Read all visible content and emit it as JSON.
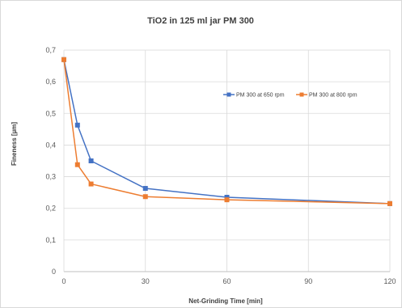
{
  "chart_data": {
    "type": "line",
    "title": "TiO2 in 125 ml jar PM 300",
    "xlabel": "Net-Grinding Time [min]",
    "ylabel": "Fineness [µm]",
    "xlim": [
      0,
      120
    ],
    "ylim": [
      0,
      0.7
    ],
    "x_ticks": [
      0,
      30,
      60,
      90,
      120
    ],
    "y_ticks": [
      0,
      0.1,
      0.2,
      0.3,
      0.4,
      0.5,
      0.6,
      0.7
    ],
    "y_tick_labels": [
      "0",
      "0,1",
      "0,2",
      "0,3",
      "0,4",
      "0,5",
      "0,6",
      "0,7"
    ],
    "x_gridlines": true,
    "y_gridlines": true,
    "legend_position": "right",
    "series": [
      {
        "name": "PM 300 at 650 rpm",
        "color": "#4472C4",
        "marker": "square",
        "x": [
          0,
          5,
          10,
          30,
          60,
          120
        ],
        "y": [
          0.67,
          0.463,
          0.35,
          0.263,
          0.235,
          0.215
        ]
      },
      {
        "name": "PM 300 at 800 rpm",
        "color": "#ED7D31",
        "marker": "square",
        "x": [
          0,
          5,
          10,
          30,
          60,
          120
        ],
        "y": [
          0.67,
          0.338,
          0.277,
          0.237,
          0.227,
          0.215
        ]
      }
    ]
  }
}
